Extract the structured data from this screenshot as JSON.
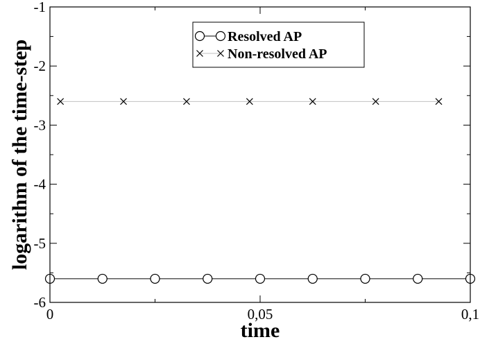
{
  "chart_data": {
    "type": "line",
    "title": "",
    "xlabel": "time",
    "ylabel": "logarithm of the time-step",
    "xlim": [
      0,
      0.1
    ],
    "ylim": [
      -6,
      -1
    ],
    "xticks": [
      0,
      0.05,
      0.1
    ],
    "xtick_labels": [
      "0",
      "0,05",
      "0,1"
    ],
    "yticks": [
      -6,
      -5,
      -4,
      -3,
      -2,
      -1
    ],
    "ytick_labels": [
      "-6",
      "-5",
      "-4",
      "-3",
      "-2",
      "-1"
    ],
    "grid": false,
    "legend_position": "top-center",
    "series": [
      {
        "name": "Resolved AP",
        "marker": "circle",
        "line_color": "#000000",
        "x": [
          0,
          0.0125,
          0.025,
          0.0375,
          0.05,
          0.0625,
          0.075,
          0.0875,
          0.1
        ],
        "y": [
          -5.6,
          -5.6,
          -5.6,
          -5.6,
          -5.6,
          -5.6,
          -5.6,
          -5.6,
          -5.6
        ]
      },
      {
        "name": "Non-resolved AP",
        "marker": "x",
        "line_color": "#c0c0c0",
        "x": [
          0.0025,
          0.0175,
          0.0325,
          0.0475,
          0.0625,
          0.0775,
          0.0925
        ],
        "y": [
          -2.6,
          -2.6,
          -2.6,
          -2.6,
          -2.6,
          -2.6,
          -2.6
        ]
      }
    ]
  }
}
